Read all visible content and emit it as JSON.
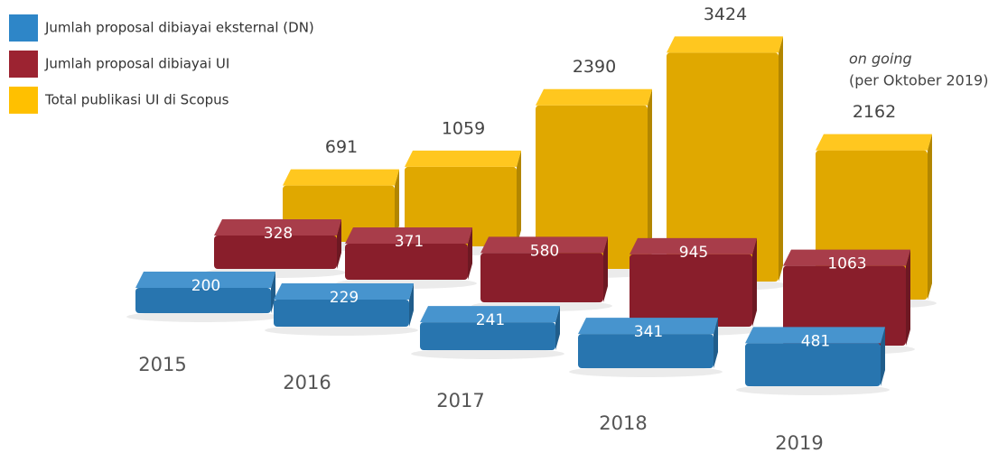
{
  "chart_data": {
    "type": "bar3d",
    "categories": [
      "2015",
      "2016",
      "2017",
      "2018",
      "2019"
    ],
    "series": [
      {
        "name": "Jumlah proposal dibiayai eksternal (DN)",
        "color": "#2e86c8",
        "values": [
          200,
          229,
          241,
          341,
          481
        ]
      },
      {
        "name": "Jumlah proposal dibiayai UI",
        "color": "#9c2331",
        "values": [
          328,
          371,
          580,
          945,
          1063
        ]
      },
      {
        "name": "Total publikasi UI di Scopus",
        "color": "#ffc000",
        "values": [
          691,
          1059,
          2390,
          3424,
          2162
        ]
      }
    ],
    "annotations": [
      "on going",
      "(per Oktober 2019)"
    ],
    "legend": "top-left"
  }
}
